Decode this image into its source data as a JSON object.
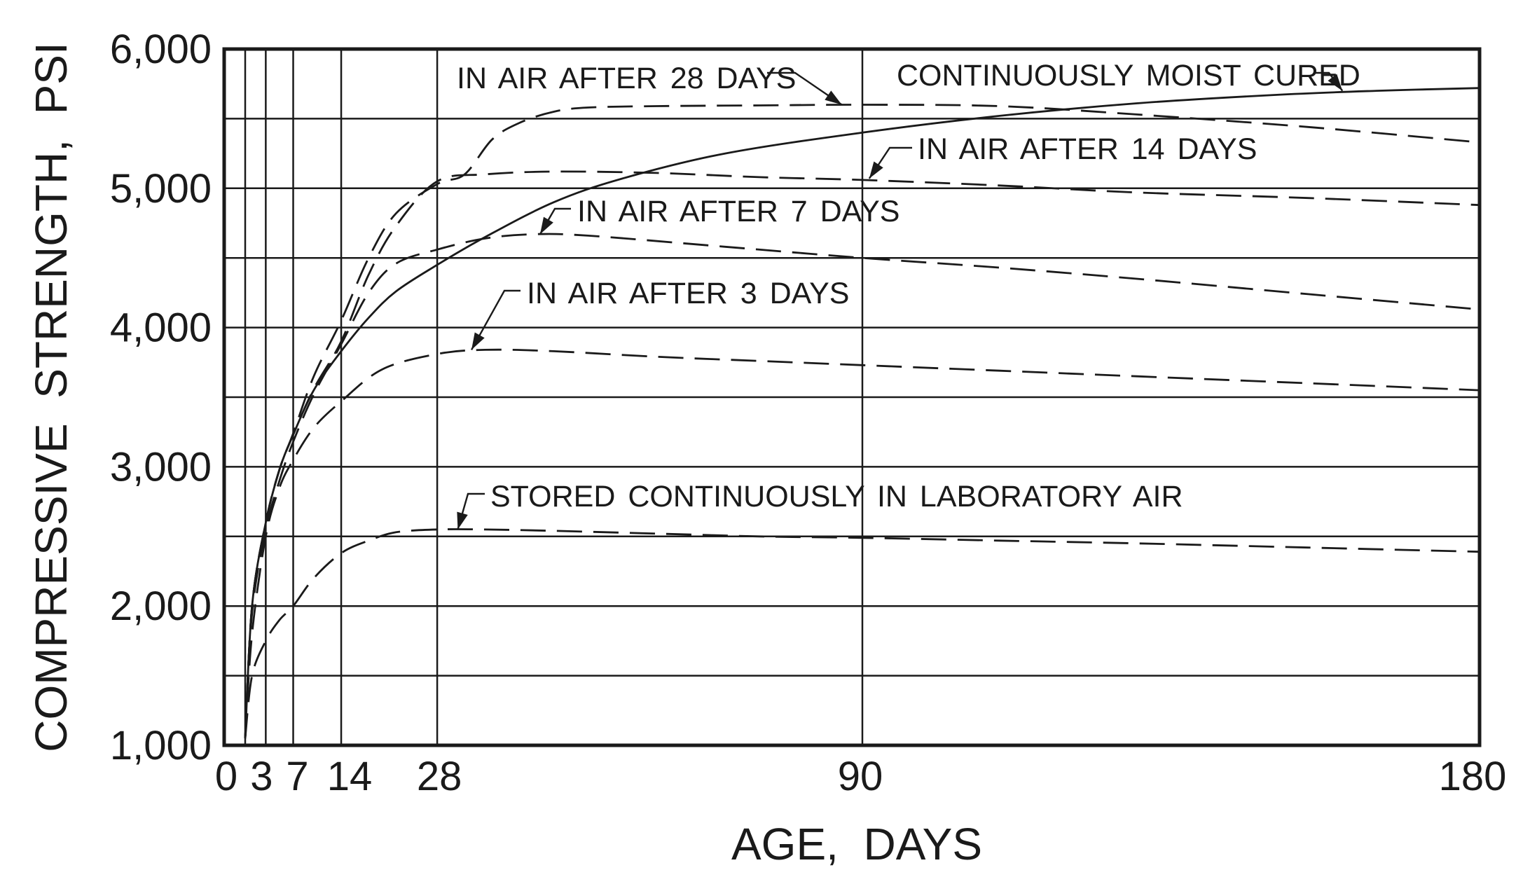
{
  "chart_data": {
    "type": "line",
    "title": "",
    "xlabel": "AGE,  DAYS",
    "ylabel": "COMPRESSIVE  STRENGTH,  PSI",
    "xlim": [
      0,
      180
    ],
    "ylim": [
      1000,
      6000
    ],
    "x_ticks": [
      0,
      3,
      7,
      14,
      28,
      90,
      180
    ],
    "x_tick_labels": [
      "0",
      "3",
      "7",
      "14",
      "28",
      "90",
      "180"
    ],
    "y_ticks": [
      1000,
      2000,
      3000,
      4000,
      5000,
      6000
    ],
    "y_tick_labels": [
      "1,000",
      "2,000",
      "3,000",
      "4,000",
      "5,000",
      "6,000"
    ],
    "y_gridlines": [
      1000,
      1500,
      2000,
      2500,
      3000,
      3500,
      4000,
      4500,
      5000,
      5500,
      6000
    ],
    "x_gridlines": [
      0,
      3,
      7,
      14,
      28,
      90,
      180
    ],
    "grid": true,
    "legend": "none",
    "series": [
      {
        "label": "CONTINUOUSLY  MOIST  CURED",
        "style": "solid",
        "x": [
          0,
          1,
          3,
          5,
          7,
          10,
          14,
          18,
          22,
          28,
          35,
          45,
          55,
          70,
          90,
          110,
          130,
          150,
          165,
          180
        ],
        "y": [
          1050,
          2000,
          2600,
          2980,
          3230,
          3550,
          3830,
          4070,
          4260,
          4450,
          4650,
          4900,
          5070,
          5250,
          5400,
          5520,
          5610,
          5670,
          5700,
          5720
        ]
      },
      {
        "label": "IN  AIR  AFTER  28  DAYS",
        "style": "dashed",
        "x": [
          0,
          1,
          3,
          5,
          7,
          10,
          14,
          18,
          22,
          28,
          32,
          36,
          40,
          45,
          50,
          60,
          75,
          90,
          110,
          130,
          155,
          180
        ],
        "y": [
          1050,
          2000,
          2600,
          2980,
          3240,
          3650,
          4050,
          4500,
          4820,
          5030,
          5100,
          5350,
          5470,
          5550,
          5580,
          5590,
          5595,
          5600,
          5590,
          5530,
          5440,
          5330
        ]
      },
      {
        "label": "IN  AIR  AFTER  14  DAYS",
        "style": "dashed",
        "x": [
          0,
          1,
          3,
          5,
          7,
          10,
          14,
          18,
          22,
          28,
          35,
          45,
          60,
          75,
          90,
          110,
          130,
          155,
          180
        ],
        "y": [
          1050,
          2000,
          2600,
          2980,
          3230,
          3560,
          3900,
          4380,
          4730,
          5050,
          5100,
          5120,
          5110,
          5080,
          5060,
          5020,
          4970,
          4930,
          4880
        ]
      },
      {
        "label": "IN  AIR  AFTER  7  DAYS",
        "style": "dashed",
        "x": [
          0,
          1,
          3,
          5,
          7,
          10,
          14,
          18,
          22,
          28,
          35,
          42,
          50,
          70,
          90,
          110,
          130,
          155,
          180
        ],
        "y": [
          1050,
          1950,
          2550,
          2900,
          3180,
          3520,
          3880,
          4250,
          4460,
          4560,
          4640,
          4670,
          4660,
          4580,
          4500,
          4430,
          4350,
          4240,
          4130
        ]
      },
      {
        "label": "IN  AIR  AFTER  3  DAYS",
        "style": "dashed",
        "x": [
          0,
          1,
          3,
          5,
          7,
          10,
          14,
          20,
          28,
          35,
          45,
          60,
          75,
          90,
          110,
          130,
          155,
          180
        ],
        "y": [
          1050,
          1800,
          2500,
          2850,
          3050,
          3280,
          3470,
          3700,
          3810,
          3840,
          3830,
          3790,
          3760,
          3730,
          3690,
          3650,
          3600,
          3550
        ]
      },
      {
        "label": "STORED  CONTINUOUSLY  IN  LABORATORY  AIR",
        "style": "dashed",
        "x": [
          0,
          1,
          3,
          5,
          7,
          10,
          14,
          18,
          22,
          28,
          35,
          45,
          60,
          75,
          90,
          110,
          130,
          155,
          180
        ],
        "y": [
          1050,
          1500,
          1750,
          1900,
          2000,
          2200,
          2380,
          2470,
          2530,
          2550,
          2550,
          2540,
          2520,
          2500,
          2490,
          2470,
          2450,
          2420,
          2390
        ]
      }
    ],
    "annotations": [
      {
        "text": "IN  AIR  AFTER  28  DAYS",
        "points_to": [
          87,
          5600
        ]
      },
      {
        "text": "CONTINUOUSLY  MOIST  CURED",
        "points_to": [
          160,
          5700
        ]
      },
      {
        "text": "IN  AIR  AFTER  14  DAYS",
        "points_to": [
          91,
          5070
        ]
      },
      {
        "text": "IN  AIR  AFTER  7  DAYS",
        "points_to": [
          43,
          4670
        ]
      },
      {
        "text": "IN  AIR  AFTER  3  DAYS",
        "points_to": [
          33,
          3840
        ]
      },
      {
        "text": "STORED  CONTINUOUSLY  IN  LABORATORY  AIR",
        "points_to": [
          31,
          2550
        ]
      }
    ]
  }
}
